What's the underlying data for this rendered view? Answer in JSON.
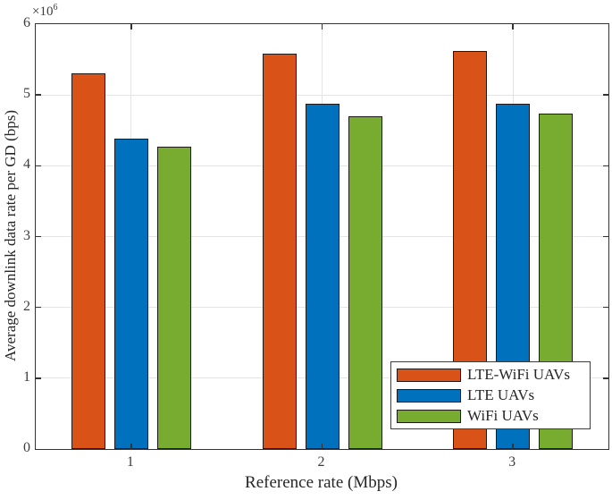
{
  "chart_data": {
    "type": "bar",
    "title": "",
    "xlabel": "Reference rate (Mbps)",
    "ylabel": "Average downlink data rate per GD (bps)",
    "y_offset_label": {
      "base": "×10",
      "exp": "6"
    },
    "categories": [
      "1",
      "2",
      "3"
    ],
    "series": [
      {
        "name": "LTE-WiFi UAVs",
        "color": "#d95319",
        "values": [
          5310000,
          5580000,
          5620000
        ]
      },
      {
        "name": "LTE UAVs",
        "color": "#0072bd",
        "values": [
          4380000,
          4870000,
          4870000
        ]
      },
      {
        "name": "WiFi UAVs",
        "color": "#77ac30",
        "values": [
          4270000,
          4700000,
          4740000
        ]
      }
    ],
    "ylim": [
      0,
      6000000
    ],
    "ytick_labels": [
      "0",
      "1",
      "2",
      "3",
      "4",
      "5",
      "6"
    ],
    "grid": true,
    "legend_position": "southeast"
  },
  "colors": {
    "background": "#ffffff",
    "axis": "#333333",
    "grid": "#e4e4e4",
    "bar_edge": "#1f1a17"
  }
}
